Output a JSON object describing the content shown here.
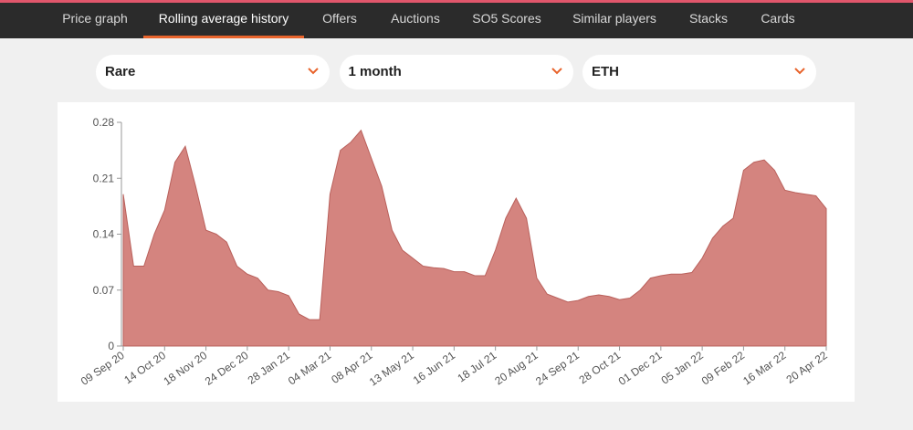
{
  "nav": {
    "tabs": [
      "Price graph",
      "Rolling average history",
      "Offers",
      "Auctions",
      "SO5 Scores",
      "Similar players",
      "Stacks",
      "Cards"
    ],
    "active_tab": 1
  },
  "filters": [
    "Rare",
    "1 month",
    "ETH"
  ],
  "chart_data": {
    "type": "area",
    "color": "#d4847f",
    "categories": [
      "09 Sep 20",
      null,
      null,
      null,
      "14 Oct 20",
      null,
      null,
      null,
      "18 Nov 20",
      null,
      null,
      null,
      "24 Dec 20",
      null,
      null,
      null,
      "28 Jan 21",
      null,
      null,
      null,
      "04 Mar 21",
      null,
      null,
      null,
      "08 Apr 21",
      null,
      null,
      null,
      "13 May 21",
      null,
      null,
      null,
      "16 Jun 21",
      null,
      null,
      null,
      "18 Jul 21",
      null,
      null,
      null,
      "20 Aug 21",
      null,
      null,
      null,
      "24 Sep 21",
      null,
      null,
      null,
      "28 Oct 21",
      null,
      null,
      null,
      "01 Dec 21",
      null,
      null,
      null,
      "05 Jan 22",
      null,
      null,
      null,
      "09 Feb 22",
      null,
      null,
      null,
      "16 Mar 22",
      null,
      null,
      null,
      "20 Apr 22"
    ],
    "values": [
      0.19,
      0.1,
      0.1,
      0.14,
      0.17,
      0.23,
      0.25,
      0.2,
      0.145,
      0.14,
      0.13,
      0.1,
      0.09,
      0.085,
      0.07,
      0.068,
      0.063,
      0.04,
      0.033,
      0.033,
      0.19,
      0.245,
      0.255,
      0.27,
      0.235,
      0.2,
      0.145,
      0.12,
      0.11,
      0.1,
      0.098,
      0.097,
      0.093,
      0.093,
      0.088,
      0.088,
      0.12,
      0.16,
      0.185,
      0.16,
      0.085,
      0.065,
      0.06,
      0.055,
      0.057,
      0.062,
      0.064,
      0.062,
      0.058,
      0.06,
      0.07,
      0.085,
      0.088,
      0.09,
      0.09,
      0.092,
      0.11,
      0.135,
      0.15,
      0.16,
      0.22,
      0.23,
      0.233,
      0.22,
      0.195,
      0.192,
      0.19,
      0.188,
      0.172
    ],
    "ylim": [
      0,
      0.28
    ],
    "yticks": [
      0,
      0.07,
      0.14,
      0.21,
      0.28
    ]
  }
}
